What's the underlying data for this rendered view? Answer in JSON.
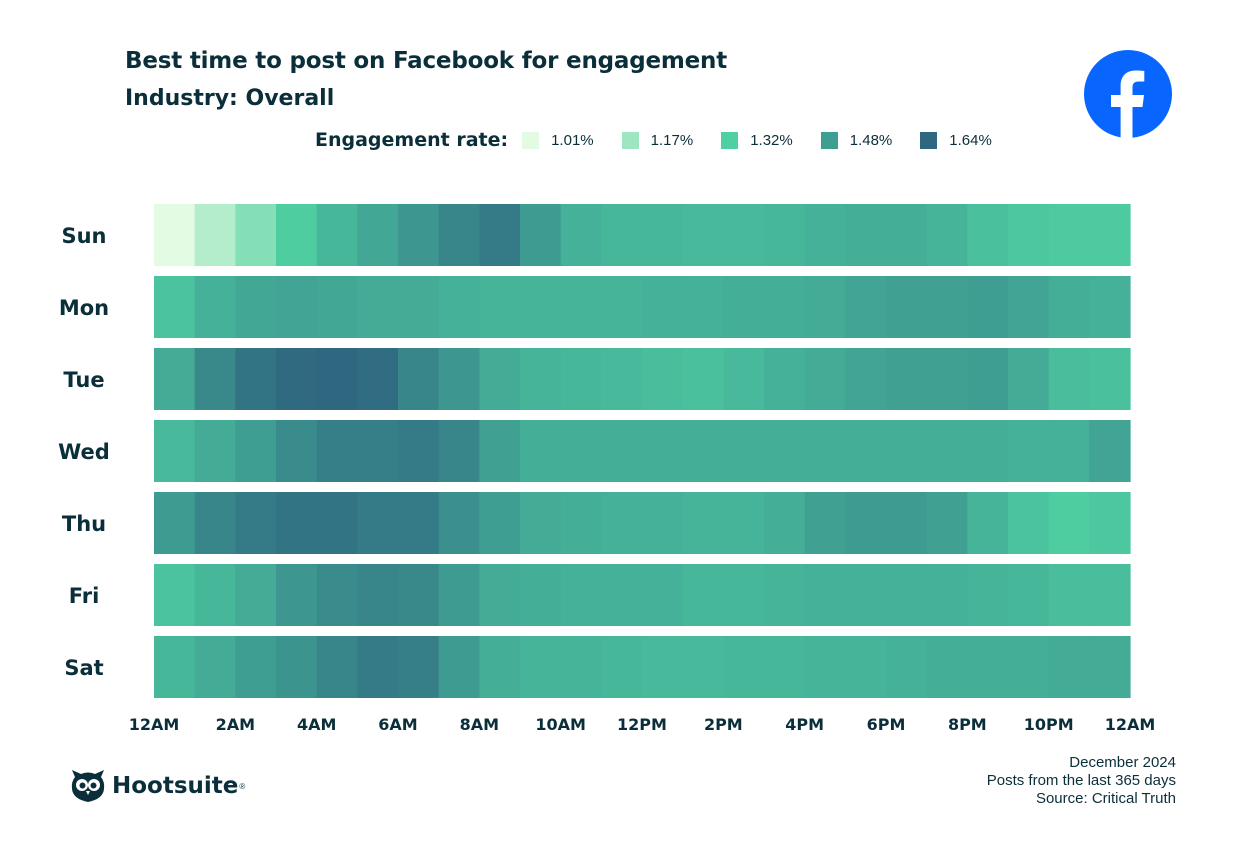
{
  "chart_data": {
    "type": "heatmap",
    "title": "Best time to post on Facebook for engagement",
    "subtitle": "Industry: Overall",
    "legend": {
      "title": "Engagement rate:",
      "items": [
        {
          "label": "1.01%",
          "value": 1.01,
          "color": "#e3fbe3"
        },
        {
          "label": "1.17%",
          "value": 1.17,
          "color": "#9ee6c2"
        },
        {
          "label": "1.32%",
          "value": 1.32,
          "color": "#4fd0a2"
        },
        {
          "label": "1.48%",
          "value": 1.48,
          "color": "#3f9e92"
        },
        {
          "label": "1.64%",
          "value": 1.64,
          "color": "#2f6680"
        }
      ]
    },
    "x_tick_labels": [
      "12AM",
      "2AM",
      "4AM",
      "6AM",
      "8AM",
      "10AM",
      "12PM",
      "2PM",
      "4PM",
      "6PM",
      "8PM",
      "10PM",
      "12AM"
    ],
    "rows": [
      "Sun",
      "Mon",
      "Tue",
      "Wed",
      "Thu",
      "Fri",
      "Sat"
    ],
    "hours": 24,
    "values": [
      [
        1.01,
        1.12,
        1.22,
        1.33,
        1.4,
        1.45,
        1.5,
        1.55,
        1.58,
        1.49,
        1.42,
        1.4,
        1.4,
        1.39,
        1.39,
        1.4,
        1.42,
        1.43,
        1.43,
        1.41,
        1.37,
        1.35,
        1.34,
        1.34
      ],
      [
        1.36,
        1.42,
        1.45,
        1.46,
        1.45,
        1.44,
        1.44,
        1.42,
        1.41,
        1.41,
        1.41,
        1.41,
        1.42,
        1.42,
        1.43,
        1.43,
        1.44,
        1.46,
        1.47,
        1.47,
        1.48,
        1.46,
        1.43,
        1.42
      ],
      [
        1.44,
        1.54,
        1.6,
        1.63,
        1.65,
        1.62,
        1.55,
        1.5,
        1.44,
        1.41,
        1.4,
        1.39,
        1.38,
        1.37,
        1.39,
        1.42,
        1.44,
        1.46,
        1.47,
        1.47,
        1.48,
        1.44,
        1.38,
        1.37
      ],
      [
        1.39,
        1.44,
        1.48,
        1.53,
        1.57,
        1.57,
        1.58,
        1.55,
        1.47,
        1.43,
        1.43,
        1.43,
        1.43,
        1.43,
        1.43,
        1.43,
        1.43,
        1.43,
        1.43,
        1.43,
        1.43,
        1.42,
        1.42,
        1.46
      ],
      [
        1.49,
        1.55,
        1.58,
        1.6,
        1.6,
        1.58,
        1.58,
        1.52,
        1.48,
        1.44,
        1.43,
        1.42,
        1.42,
        1.41,
        1.41,
        1.43,
        1.47,
        1.49,
        1.49,
        1.47,
        1.41,
        1.36,
        1.33,
        1.35
      ],
      [
        1.36,
        1.4,
        1.44,
        1.5,
        1.53,
        1.55,
        1.54,
        1.49,
        1.44,
        1.43,
        1.42,
        1.42,
        1.42,
        1.4,
        1.4,
        1.41,
        1.42,
        1.42,
        1.42,
        1.42,
        1.41,
        1.4,
        1.38,
        1.38
      ],
      [
        1.4,
        1.44,
        1.48,
        1.51,
        1.55,
        1.58,
        1.57,
        1.49,
        1.43,
        1.41,
        1.41,
        1.4,
        1.39,
        1.39,
        1.4,
        1.4,
        1.41,
        1.41,
        1.42,
        1.43,
        1.43,
        1.43,
        1.44,
        1.44
      ]
    ],
    "color_scale": {
      "min": 1.01,
      "max": 1.64
    }
  },
  "brand": {
    "name": "Hootsuite",
    "mark": "®",
    "icon": "owl-logo-icon"
  },
  "logo": {
    "icon": "facebook-logo-icon",
    "color": "#0866ff"
  },
  "footer": {
    "date": "December 2024",
    "note": "Posts from the last 365 days",
    "source": "Source: Critical Truth"
  }
}
